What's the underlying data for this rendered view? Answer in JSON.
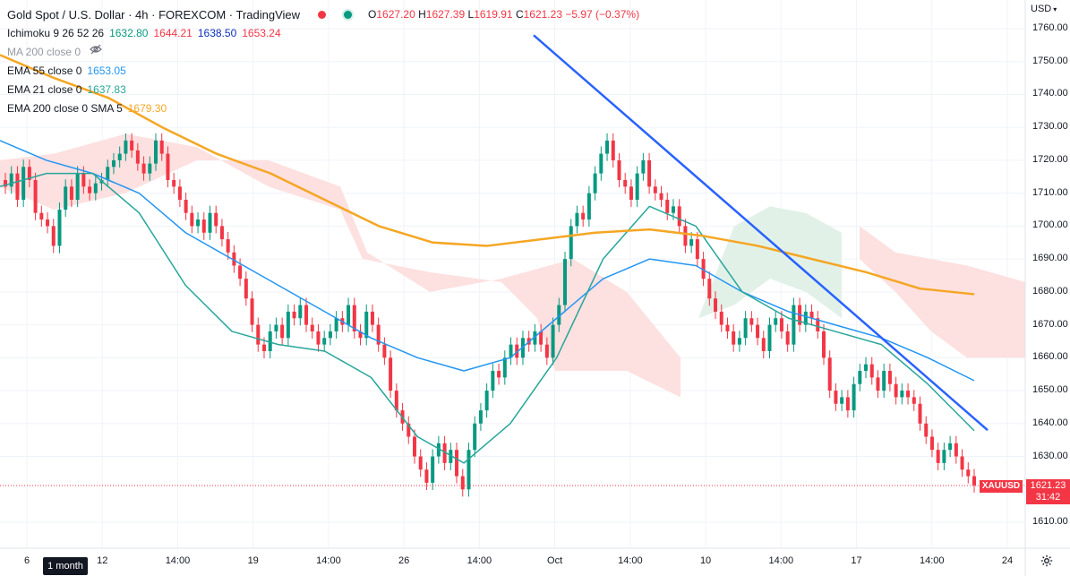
{
  "header": {
    "title": "Gold Spot / U.S. Dollar · 4h · FOREXCOM · TradingView",
    "ohlc": {
      "o_label": "O",
      "o": "1627.20",
      "h_label": "H",
      "h": "1627.39",
      "l_label": "L",
      "l": "1619.91",
      "c_label": "C",
      "c": "1621.23",
      "change": "−5.97 (−0.37%)"
    }
  },
  "indicators": [
    {
      "name": "Ichimoku 9 26 52 26",
      "values": [
        "1632.80",
        "1644.21",
        "1638.50",
        "1653.24"
      ],
      "colors": [
        "#089981",
        "#f23645",
        "#0d2fb8",
        "#f23645"
      ]
    },
    {
      "name": "MA 200 close 0",
      "values": [],
      "colors": [],
      "hidden": true
    },
    {
      "name": "EMA 55 close 0",
      "values": [
        "1653.05"
      ],
      "colors": [
        "#2196f3"
      ]
    },
    {
      "name": "EMA 21 close 0",
      "values": [
        "1637.83"
      ],
      "colors": [
        "#26a69a"
      ]
    },
    {
      "name": "EMA 200 close 0 SMA 5",
      "values": [
        "1679.30"
      ],
      "colors": [
        "#f5a623"
      ]
    }
  ],
  "price_axis": {
    "currency": "USD",
    "ticks": [
      "1760.00",
      "1750.00",
      "1740.00",
      "1730.00",
      "1720.00",
      "1710.00",
      "1700.00",
      "1690.00",
      "1680.00",
      "1670.00",
      "1660.00",
      "1650.00",
      "1640.00",
      "1630.00",
      "1610.00"
    ],
    "current_price": "1621.23",
    "countdown": "31:42",
    "symbol_tag": "XAUUSD"
  },
  "time_axis": {
    "ticks": [
      "6",
      "12",
      "14:00",
      "19",
      "14:00",
      "26",
      "14:00",
      "Oct",
      "14:00",
      "10",
      "14:00",
      "17",
      "14:00",
      "24"
    ],
    "range_button": "1 month"
  },
  "icons": {
    "settings": "gear-icon",
    "hidden_eye": "eye-off-icon"
  },
  "colors": {
    "up": "#089981",
    "down": "#f23645",
    "ema200": "#f5a623",
    "ema55": "#2196f3",
    "ema21": "#26a69a",
    "trendline": "#2962ff",
    "kijun": "#8b0000",
    "cloud_bull": "#e2f1e8",
    "cloud_bear": "#fde0e0"
  },
  "chart_data": {
    "type": "candlestick",
    "symbol": "XAUUSD",
    "timeframe": "4h",
    "ylim": [
      1605,
      1765
    ],
    "ohlc_last": {
      "open": 1627.2,
      "high": 1627.39,
      "low": 1619.91,
      "close": 1621.23
    },
    "close_series": [
      1712,
      1716,
      1708,
      1718,
      1714,
      1704,
      1702,
      1700,
      1694,
      1705,
      1712,
      1708,
      1716,
      1712,
      1710,
      1713,
      1714,
      1718,
      1720,
      1722,
      1726,
      1723,
      1719,
      1716,
      1719,
      1726,
      1722,
      1714,
      1712,
      1708,
      1704,
      1700,
      1702,
      1698,
      1704,
      1700,
      1696,
      1692,
      1688,
      1684,
      1678,
      1670,
      1664,
      1662,
      1668,
      1670,
      1666,
      1674,
      1672,
      1676,
      1670,
      1668,
      1664,
      1666,
      1668,
      1672,
      1670,
      1676,
      1668,
      1666,
      1674,
      1670,
      1664,
      1660,
      1650,
      1644,
      1640,
      1636,
      1630,
      1626,
      1622,
      1630,
      1634,
      1628,
      1632,
      1624,
      1620,
      1632,
      1640,
      1644,
      1650,
      1656,
      1654,
      1660,
      1664,
      1660,
      1666,
      1664,
      1668,
      1664,
      1660,
      1670,
      1676,
      1690,
      1700,
      1704,
      1702,
      1710,
      1716,
      1722,
      1726,
      1720,
      1714,
      1712,
      1708,
      1716,
      1720,
      1712,
      1710,
      1708,
      1704,
      1706,
      1700,
      1694,
      1696,
      1690,
      1684,
      1678,
      1674,
      1670,
      1668,
      1664,
      1666,
      1672,
      1670,
      1666,
      1662,
      1670,
      1672,
      1668,
      1664,
      1676,
      1670,
      1674,
      1672,
      1668,
      1660,
      1650,
      1646,
      1648,
      1644,
      1652,
      1656,
      1658,
      1654,
      1650,
      1656,
      1652,
      1648,
      1650,
      1648,
      1646,
      1640,
      1636,
      1632,
      1628,
      1632,
      1634,
      1630,
      1626,
      1624,
      1621.23
    ],
    "ema200_series": [
      1752,
      1745,
      1739,
      1730,
      1722,
      1716,
      1708,
      1700,
      1695,
      1694,
      1696,
      1698,
      1699,
      1697,
      1694,
      1690,
      1686,
      1681,
      1679.3
    ],
    "ema55_series": [
      1726,
      1720,
      1716,
      1710,
      1698,
      1690,
      1682,
      1674,
      1666,
      1660,
      1656,
      1660,
      1672,
      1684,
      1690,
      1688,
      1680,
      1674,
      1670,
      1666,
      1660,
      1653.05
    ],
    "ema21_series": [
      1712,
      1716,
      1716,
      1704,
      1682,
      1668,
      1664,
      1662,
      1654,
      1636,
      1628,
      1640,
      1660,
      1690,
      1706,
      1700,
      1680,
      1672,
      1668,
      1664,
      1652,
      1637.83
    ],
    "trendline": [
      {
        "x_label": "Oct",
        "y": 1766
      },
      {
        "x_label": "24",
        "y": 1637
      }
    ]
  }
}
